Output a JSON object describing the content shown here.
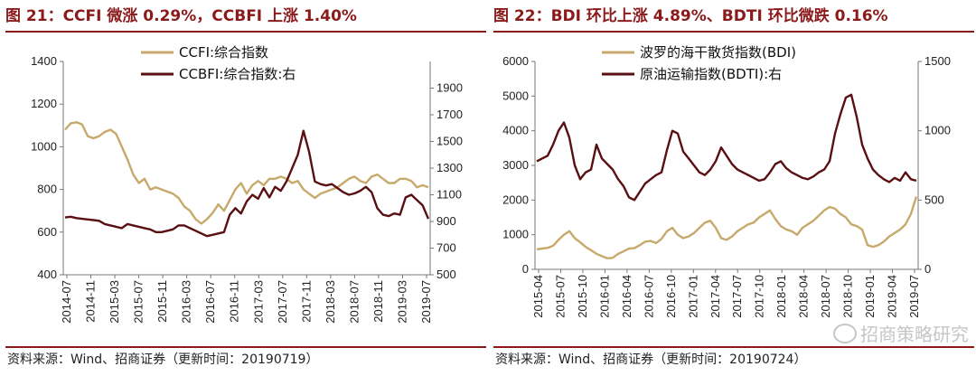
{
  "charts": [
    {
      "title": "图 21：CCFI 微涨 0.29%，CCBFI 上涨 1.40%",
      "source": "资料来源：Wind、招商证券（更新时间：20190719）"
    },
    {
      "title": "图 22：BDI 环比上涨 4.89%、BDTI 环比微跌 0.16%",
      "source": "资料来源：Wind、招商证券（更新时间：20190724）"
    }
  ],
  "watermark": "招商策略研究",
  "colors": {
    "gold": "#c7a96b",
    "maroon": "#5a0f12",
    "title_red": "#8b1a1a"
  },
  "chart_data": [
    {
      "type": "line",
      "x_ticks": [
        "2014-07",
        "2014-11",
        "2015-03",
        "2015-07",
        "2015-11",
        "2016-03",
        "2016-07",
        "2016-11",
        "2017-03",
        "2017-07",
        "2017-11",
        "2018-03",
        "2018-07",
        "2018-11",
        "2019-03",
        "2019-07"
      ],
      "ylim_left": [
        400,
        1400
      ],
      "yticks_left": [
        "400",
        "600",
        "800",
        "1000",
        "1200",
        "1400"
      ],
      "ylim_right": [
        500,
        2100
      ],
      "yticks_right": [
        "500",
        "700",
        "900",
        "1100",
        "1300",
        "1500",
        "1700",
        "1900"
      ],
      "legend": "top-right",
      "series": [
        {
          "name": "CCFI:综合指数",
          "axis": "left",
          "color": "#c7a96b",
          "values": [
            1080,
            1110,
            1115,
            1105,
            1050,
            1040,
            1050,
            1070,
            1080,
            1060,
            1000,
            940,
            870,
            830,
            850,
            800,
            810,
            800,
            790,
            780,
            760,
            720,
            700,
            660,
            640,
            660,
            690,
            730,
            700,
            750,
            800,
            830,
            780,
            820,
            840,
            820,
            850,
            850,
            860,
            850,
            830,
            840,
            800,
            780,
            760,
            780,
            790,
            800,
            810,
            830,
            850,
            860,
            840,
            830,
            860,
            870,
            850,
            830,
            830,
            850,
            850,
            840,
            810,
            820,
            810
          ]
        },
        {
          "name": "CCBFI:综合指数:右",
          "axis": "right",
          "color": "#5a0f12",
          "values": [
            930,
            935,
            925,
            920,
            915,
            910,
            905,
            880,
            870,
            860,
            850,
            880,
            870,
            860,
            850,
            840,
            820,
            820,
            830,
            840,
            870,
            870,
            850,
            830,
            810,
            790,
            800,
            810,
            820,
            950,
            1000,
            960,
            1050,
            1100,
            1070,
            1150,
            1080,
            1160,
            1130,
            1200,
            1300,
            1400,
            1580,
            1420,
            1200,
            1180,
            1170,
            1180,
            1150,
            1120,
            1100,
            1110,
            1130,
            1160,
            1120,
            1000,
            950,
            940,
            960,
            950,
            1080,
            1100,
            1060,
            1020,
            920
          ]
        }
      ]
    },
    {
      "type": "line",
      "x_ticks": [
        "2015-04",
        "2015-07",
        "2015-10",
        "2016-01",
        "2016-04",
        "2016-07",
        "2016-10",
        "2017-01",
        "2017-04",
        "2017-07",
        "2017-10",
        "2018-01",
        "2018-04",
        "2018-07",
        "2018-10",
        "2019-01",
        "2019-04",
        "2019-07"
      ],
      "ylim_left": [
        0,
        6000
      ],
      "yticks_left": [
        "0",
        "1000",
        "2000",
        "3000",
        "4000",
        "5000",
        "6000"
      ],
      "ylim_right": [
        0,
        1500
      ],
      "yticks_right": [
        "0",
        "500",
        "1000",
        "1500"
      ],
      "legend": "top-center",
      "series": [
        {
          "name": "波罗的海干散货指数(BDI)",
          "axis": "left",
          "color": "#c7a96b",
          "values": [
            580,
            600,
            620,
            680,
            850,
            1000,
            1100,
            900,
            780,
            650,
            550,
            450,
            380,
            320,
            330,
            450,
            520,
            600,
            610,
            700,
            800,
            820,
            760,
            880,
            1100,
            1200,
            1000,
            900,
            950,
            1050,
            1200,
            1350,
            1400,
            1200,
            900,
            850,
            950,
            1100,
            1200,
            1300,
            1350,
            1500,
            1600,
            1700,
            1450,
            1250,
            1150,
            1100,
            1000,
            1200,
            1300,
            1400,
            1550,
            1700,
            1800,
            1750,
            1600,
            1500,
            1300,
            1250,
            1150,
            700,
            650,
            700,
            800,
            950,
            1050,
            1150,
            1300,
            1600,
            2100
          ]
        },
        {
          "name": "原油运输指数(BDTI):右",
          "axis": "right",
          "color": "#5a0f12",
          "values": [
            780,
            800,
            820,
            900,
            1000,
            1060,
            950,
            750,
            650,
            700,
            720,
            900,
            800,
            760,
            720,
            650,
            600,
            520,
            500,
            560,
            620,
            650,
            680,
            700,
            860,
            1000,
            980,
            850,
            800,
            750,
            700,
            680,
            720,
            780,
            880,
            820,
            760,
            720,
            700,
            680,
            660,
            640,
            650,
            700,
            760,
            780,
            730,
            700,
            680,
            660,
            650,
            670,
            700,
            720,
            780,
            980,
            1120,
            1240,
            1260,
            1100,
            900,
            800,
            720,
            680,
            650,
            630,
            660,
            640,
            700,
            650,
            640
          ]
        }
      ]
    }
  ]
}
